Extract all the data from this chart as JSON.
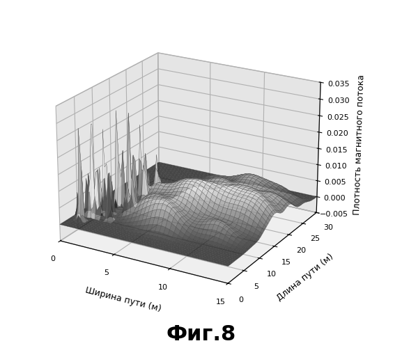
{
  "title": "Фиг.8",
  "xlabel": "Ширина пути (м)",
  "ylabel": "Длина пути (м)",
  "zlabel": "Плотность магнитного потока",
  "xlim": [
    0,
    15
  ],
  "ylim": [
    0,
    30
  ],
  "zlim": [
    -0.005,
    0.035
  ],
  "xticks": [
    0,
    5,
    10,
    15
  ],
  "yticks": [
    0,
    5,
    10,
    15,
    20,
    25,
    30
  ],
  "zticks": [
    -0.005,
    0.0,
    0.005,
    0.01,
    0.015,
    0.02,
    0.025,
    0.03,
    0.035
  ],
  "title_fontsize": 22,
  "label_fontsize": 9,
  "tick_fontsize": 8,
  "figsize": [
    5.77,
    5.0
  ],
  "dpi": 100,
  "background_color": "#ffffff",
  "elev": 22,
  "azim": -60
}
